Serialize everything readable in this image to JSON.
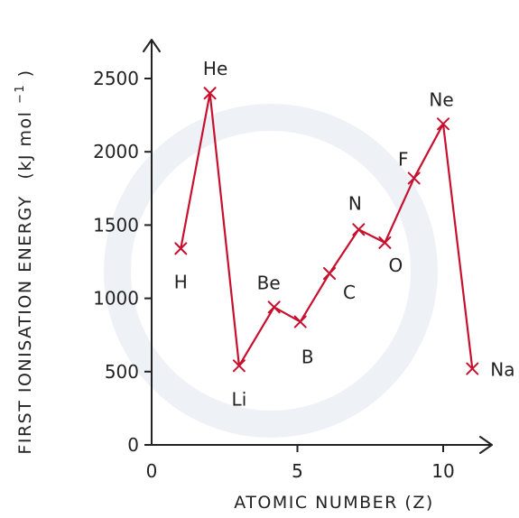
{
  "chart_data": {
    "type": "line",
    "title": "",
    "xlabel": "ATOMIC NUMBER (Z)",
    "ylabel_main": "FIRST IONISATION ENERGY",
    "ylabel_unit": "(kJ mol",
    "ylabel_unit_exp": "−1",
    "ylabel_unit_close": ")",
    "xlim": [
      0,
      11
    ],
    "ylim": [
      0,
      2500
    ],
    "x_ticks": [
      0,
      5,
      10
    ],
    "y_ticks": [
      0,
      500,
      1000,
      1500,
      2000,
      2500
    ],
    "grid": false,
    "series": [
      {
        "points": [
          {
            "x": 1,
            "y": 1340,
            "label": "H"
          },
          {
            "x": 2,
            "y": 2400,
            "label": "He"
          },
          {
            "x": 3,
            "y": 540,
            "label": "Li"
          },
          {
            "x": 4.2,
            "y": 940,
            "label": "Be"
          },
          {
            "x": 5.1,
            "y": 840,
            "label": "B"
          },
          {
            "x": 6.1,
            "y": 1170,
            "label": "C"
          },
          {
            "x": 7.1,
            "y": 1470,
            "label": "N"
          },
          {
            "x": 8,
            "y": 1380,
            "label": "O"
          },
          {
            "x": 9,
            "y": 1820,
            "label": "F"
          },
          {
            "x": 10,
            "y": 2190,
            "label": "Ne"
          },
          {
            "x": 11,
            "y": 520,
            "label": "Na"
          }
        ]
      }
    ],
    "colors": {
      "series": "#c8102e",
      "axis": "#222222"
    }
  }
}
